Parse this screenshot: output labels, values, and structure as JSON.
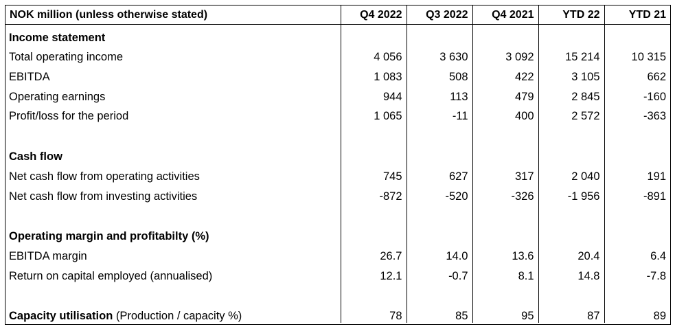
{
  "table": {
    "header": {
      "title": "NOK million (unless otherwise stated)",
      "columns": [
        "Q4 2022",
        "Q3 2022",
        "Q4 2021",
        "YTD 22",
        "YTD 21"
      ]
    },
    "income_statement": {
      "heading": "Income statement",
      "rows": [
        {
          "label": "Total operating income",
          "values": [
            "4 056",
            "3 630",
            "3 092",
            "15 214",
            "10 315"
          ]
        },
        {
          "label": "EBITDA",
          "values": [
            "1 083",
            "508",
            "422",
            "3 105",
            "662"
          ]
        },
        {
          "label": "Operating earnings",
          "values": [
            "944",
            "113",
            "479",
            "2 845",
            "-160"
          ]
        },
        {
          "label": "Profit/loss for the period",
          "values": [
            "1 065",
            "-11",
            "400",
            "2 572",
            "-363"
          ]
        }
      ]
    },
    "cash_flow": {
      "heading": "Cash flow",
      "rows": [
        {
          "label": "Net cash flow from operating activities",
          "values": [
            "745",
            "627",
            "317",
            "2 040",
            "191"
          ]
        },
        {
          "label": "Net cash flow from investing activities",
          "values": [
            "-872",
            "-520",
            "-326",
            "-1 956",
            "-891"
          ]
        }
      ]
    },
    "margins": {
      "heading": "Operating margin and profitabilty (%)",
      "rows": [
        {
          "label": "EBITDA margin",
          "values": [
            "26.7",
            "14.0",
            "13.6",
            "20.4",
            "6.4"
          ]
        },
        {
          "label": "Return on capital employed (annualised)",
          "values": [
            "12.1",
            "-0.7",
            "8.1",
            "14.8",
            "-7.8"
          ]
        }
      ]
    },
    "capacity": {
      "label_bold": "Capacity utilisation",
      "label_rest": " (Production / capacity %)",
      "values": [
        "78",
        "85",
        "95",
        "87",
        "89"
      ]
    }
  }
}
